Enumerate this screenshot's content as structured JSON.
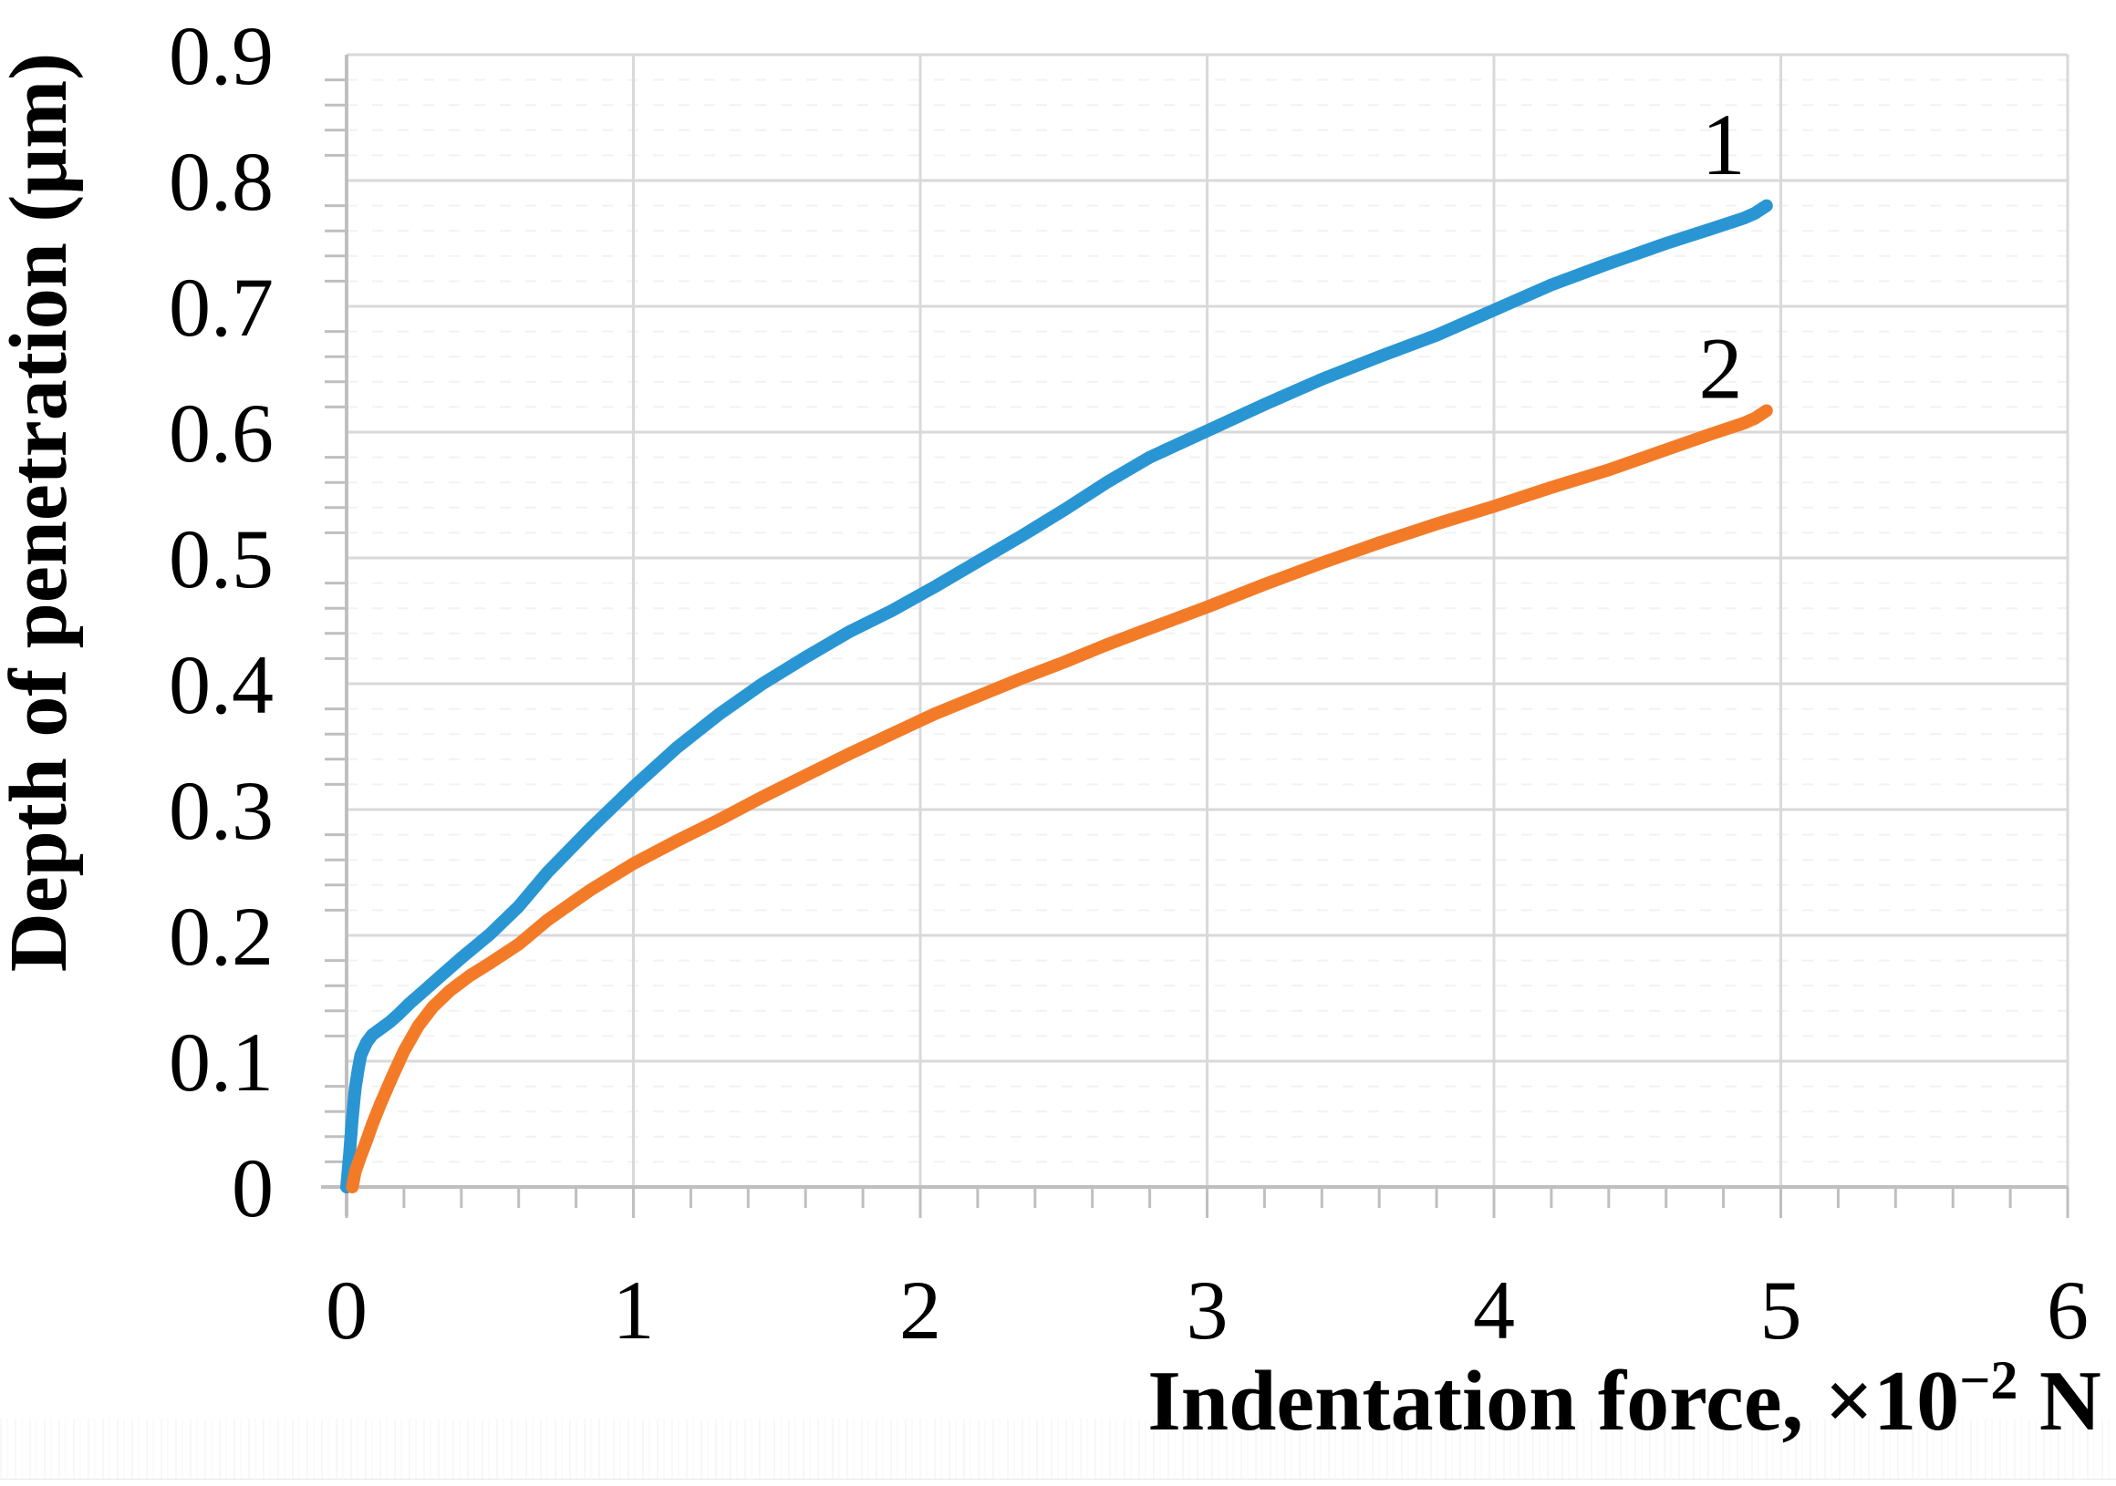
{
  "chart_data": {
    "type": "line",
    "title": "",
    "xlabel": "Indentation force, ×10⁻² N",
    "xlabel_parts": {
      "prefix": "Indentation force, ×10",
      "sup": "−2",
      "suffix": " N"
    },
    "ylabel": "Depth of penetration (μm)",
    "xlim": [
      0,
      6
    ],
    "ylim": [
      0,
      0.9
    ],
    "x_ticks": {
      "values": [
        0,
        1,
        2,
        3,
        4,
        5,
        6
      ],
      "labels": [
        "0",
        "1",
        "2",
        "3",
        "4",
        "5",
        "6"
      ]
    },
    "y_ticks": {
      "values": [
        0,
        0.1,
        0.2,
        0.3,
        0.4,
        0.5,
        0.6,
        0.7,
        0.8,
        0.9
      ],
      "labels": [
        "0",
        "0.1",
        "0.2",
        "0.3",
        "0.4",
        "0.5",
        "0.6",
        "0.7",
        "0.8",
        "0.9"
      ]
    },
    "x_minor_step": 0.2,
    "y_minor_step": 0.02,
    "grid": {
      "major": true,
      "minor_horizontal_dashed": true
    },
    "legend_position": "inline-labels-right",
    "colors": {
      "series1": "#2996D3",
      "series2": "#F37B28",
      "axis": "#BFBFBF",
      "grid_major": "#D9D9D9",
      "grid_minor": "#F2F2F2",
      "text": "#000000"
    },
    "series": [
      {
        "name": "1",
        "color_key": "series1",
        "label_anchor": [
          4.8,
          0.805
        ],
        "points": [
          [
            0.0,
            0.0
          ],
          [
            0.01,
            0.025
          ],
          [
            0.02,
            0.055
          ],
          [
            0.03,
            0.078
          ],
          [
            0.04,
            0.093
          ],
          [
            0.05,
            0.105
          ],
          [
            0.07,
            0.115
          ],
          [
            0.09,
            0.121
          ],
          [
            0.12,
            0.126
          ],
          [
            0.15,
            0.131
          ],
          [
            0.18,
            0.137
          ],
          [
            0.22,
            0.146
          ],
          [
            0.26,
            0.154
          ],
          [
            0.32,
            0.166
          ],
          [
            0.4,
            0.182
          ],
          [
            0.5,
            0.201
          ],
          [
            0.6,
            0.223
          ],
          [
            0.7,
            0.25
          ],
          [
            0.85,
            0.285
          ],
          [
            1.0,
            0.318
          ],
          [
            1.15,
            0.349
          ],
          [
            1.3,
            0.376
          ],
          [
            1.45,
            0.4
          ],
          [
            1.6,
            0.421
          ],
          [
            1.75,
            0.441
          ],
          [
            1.9,
            0.458
          ],
          [
            2.05,
            0.477
          ],
          [
            2.2,
            0.497
          ],
          [
            2.35,
            0.517
          ],
          [
            2.5,
            0.538
          ],
          [
            2.65,
            0.56
          ],
          [
            2.8,
            0.58
          ],
          [
            3.0,
            0.601
          ],
          [
            3.2,
            0.622
          ],
          [
            3.4,
            0.642
          ],
          [
            3.6,
            0.66
          ],
          [
            3.8,
            0.677
          ],
          [
            4.0,
            0.697
          ],
          [
            4.2,
            0.717
          ],
          [
            4.4,
            0.734
          ],
          [
            4.6,
            0.75
          ],
          [
            4.75,
            0.761
          ],
          [
            4.87,
            0.77
          ],
          [
            4.91,
            0.774
          ],
          [
            4.95,
            0.78
          ]
        ]
      },
      {
        "name": "2",
        "color_key": "series2",
        "label_anchor": [
          4.79,
          0.627
        ],
        "points": [
          [
            0.02,
            0.0
          ],
          [
            0.03,
            0.012
          ],
          [
            0.05,
            0.025
          ],
          [
            0.07,
            0.037
          ],
          [
            0.09,
            0.05
          ],
          [
            0.12,
            0.067
          ],
          [
            0.16,
            0.088
          ],
          [
            0.2,
            0.108
          ],
          [
            0.25,
            0.128
          ],
          [
            0.3,
            0.143
          ],
          [
            0.36,
            0.156
          ],
          [
            0.43,
            0.168
          ],
          [
            0.5,
            0.178
          ],
          [
            0.6,
            0.193
          ],
          [
            0.7,
            0.212
          ],
          [
            0.85,
            0.236
          ],
          [
            1.0,
            0.257
          ],
          [
            1.15,
            0.275
          ],
          [
            1.3,
            0.292
          ],
          [
            1.45,
            0.31
          ],
          [
            1.6,
            0.327
          ],
          [
            1.75,
            0.344
          ],
          [
            1.9,
            0.36
          ],
          [
            2.05,
            0.376
          ],
          [
            2.2,
            0.39
          ],
          [
            2.35,
            0.404
          ],
          [
            2.5,
            0.417
          ],
          [
            2.65,
            0.431
          ],
          [
            2.8,
            0.444
          ],
          [
            3.0,
            0.461
          ],
          [
            3.2,
            0.479
          ],
          [
            3.4,
            0.496
          ],
          [
            3.6,
            0.512
          ],
          [
            3.8,
            0.527
          ],
          [
            4.0,
            0.541
          ],
          [
            4.2,
            0.556
          ],
          [
            4.4,
            0.57
          ],
          [
            4.6,
            0.586
          ],
          [
            4.75,
            0.598
          ],
          [
            4.87,
            0.607
          ],
          [
            4.91,
            0.611
          ],
          [
            4.95,
            0.617
          ]
        ]
      }
    ]
  }
}
